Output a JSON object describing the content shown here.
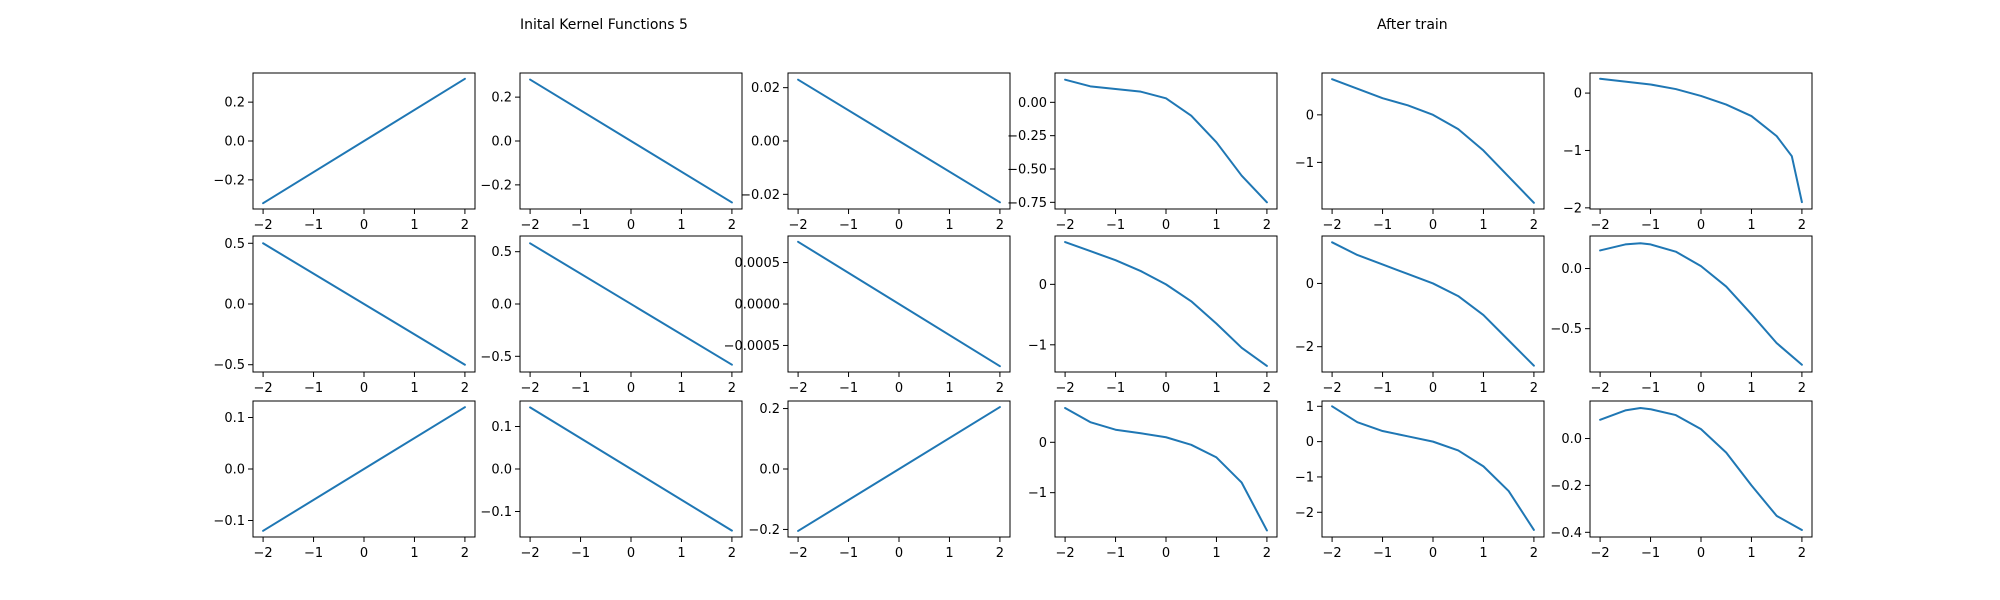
{
  "titles": {
    "left": "Inital Kernel Functions 5",
    "right": "After train"
  },
  "style": {
    "line_color": "#1f77b4",
    "axis_color": "#000000",
    "background": "#ffffff"
  },
  "chart_data": [
    {
      "type": "line",
      "row": 0,
      "col": 0,
      "x": [
        -2,
        2
      ],
      "y": [
        -0.32,
        0.32
      ],
      "ylim": [
        -0.35,
        0.35
      ],
      "xticks": [
        -2,
        -1,
        0,
        1,
        2
      ],
      "yticks": [
        -0.2,
        0.0,
        0.2
      ],
      "ytick_labels": [
        "−0.2",
        "0.0",
        "0.2"
      ]
    },
    {
      "type": "line",
      "row": 0,
      "col": 1,
      "x": [
        -2,
        2
      ],
      "y": [
        0.28,
        -0.28
      ],
      "ylim": [
        -0.31,
        0.31
      ],
      "xticks": [
        -2,
        -1,
        0,
        1,
        2
      ],
      "yticks": [
        -0.2,
        0.0,
        0.2
      ],
      "ytick_labels": [
        "−0.2",
        "0.0",
        "0.2"
      ]
    },
    {
      "type": "line",
      "row": 0,
      "col": 2,
      "x": [
        -2,
        2
      ],
      "y": [
        0.023,
        -0.023
      ],
      "ylim": [
        -0.0255,
        0.0255
      ],
      "xticks": [
        -2,
        -1,
        0,
        1,
        2
      ],
      "yticks": [
        -0.02,
        0.0,
        0.02
      ],
      "ytick_labels": [
        "−0.02",
        "0.00",
        "0.02"
      ]
    },
    {
      "type": "line",
      "row": 0,
      "col": 3,
      "x": [
        -2,
        -1.5,
        -1,
        -0.5,
        0,
        0.5,
        1,
        1.5,
        2
      ],
      "y": [
        0.17,
        0.12,
        0.1,
        0.08,
        0.03,
        -0.1,
        -0.3,
        -0.55,
        -0.75
      ],
      "ylim": [
        -0.8,
        0.22
      ],
      "xticks": [
        -2,
        -1,
        0,
        1,
        2
      ],
      "yticks": [
        -0.75,
        -0.5,
        -0.25,
        0.0
      ],
      "ytick_labels": [
        "−0.75",
        "−0.50",
        "−0.25",
        "0.00"
      ]
    },
    {
      "type": "line",
      "row": 0,
      "col": 4,
      "x": [
        -2,
        -1.5,
        -1,
        -0.5,
        0,
        0.5,
        1,
        1.5,
        2
      ],
      "y": [
        0.75,
        0.55,
        0.35,
        0.2,
        0.0,
        -0.3,
        -0.75,
        -1.3,
        -1.85
      ],
      "ylim": [
        -1.98,
        0.88
      ],
      "xticks": [
        -2,
        -1,
        0,
        1,
        2
      ],
      "yticks": [
        -1,
        0
      ],
      "ytick_labels": [
        "−1",
        "0"
      ]
    },
    {
      "type": "line",
      "row": 0,
      "col": 5,
      "x": [
        -2,
        -1.5,
        -1,
        -0.5,
        0,
        0.5,
        1,
        1.5,
        1.8,
        2
      ],
      "y": [
        0.25,
        0.2,
        0.15,
        0.07,
        -0.05,
        -0.2,
        -0.4,
        -0.75,
        -1.1,
        -1.9
      ],
      "ylim": [
        -2.02,
        0.35
      ],
      "xticks": [
        -2,
        -1,
        0,
        1,
        2
      ],
      "yticks": [
        -2,
        -1,
        0
      ],
      "ytick_labels": [
        "−2",
        "−1",
        "0"
      ]
    },
    {
      "type": "line",
      "row": 1,
      "col": 0,
      "x": [
        -2,
        2
      ],
      "y": [
        0.5,
        -0.5
      ],
      "ylim": [
        -0.56,
        0.56
      ],
      "xticks": [
        -2,
        -1,
        0,
        1,
        2
      ],
      "yticks": [
        -0.5,
        0.0,
        0.5
      ],
      "ytick_labels": [
        "−0.5",
        "0.0",
        "0.5"
      ]
    },
    {
      "type": "line",
      "row": 1,
      "col": 1,
      "x": [
        -2,
        2
      ],
      "y": [
        0.58,
        -0.58
      ],
      "ylim": [
        -0.65,
        0.65
      ],
      "xticks": [
        -2,
        -1,
        0,
        1,
        2
      ],
      "yticks": [
        -0.5,
        0.0,
        0.5
      ],
      "ytick_labels": [
        "−0.5",
        "0.0",
        "0.5"
      ]
    },
    {
      "type": "line",
      "row": 1,
      "col": 2,
      "x": [
        -2,
        2
      ],
      "y": [
        0.00075,
        -0.00075
      ],
      "ylim": [
        -0.00082,
        0.00082
      ],
      "xticks": [
        -2,
        -1,
        0,
        1,
        2
      ],
      "yticks": [
        -0.0005,
        0.0,
        0.0005
      ],
      "ytick_labels": [
        "−0.0005",
        "0.0000",
        "0.0005"
      ]
    },
    {
      "type": "line",
      "row": 1,
      "col": 3,
      "x": [
        -2,
        -1.5,
        -1,
        -0.5,
        0,
        0.5,
        1,
        1.5,
        2
      ],
      "y": [
        0.7,
        0.55,
        0.4,
        0.22,
        0.0,
        -0.28,
        -0.65,
        -1.05,
        -1.35
      ],
      "ylim": [
        -1.45,
        0.8
      ],
      "xticks": [
        -2,
        -1,
        0,
        1,
        2
      ],
      "yticks": [
        -1,
        0
      ],
      "ytick_labels": [
        "−1",
        "0"
      ]
    },
    {
      "type": "line",
      "row": 1,
      "col": 4,
      "x": [
        -2,
        -1.5,
        -1,
        -0.5,
        0,
        0.5,
        1,
        1.5,
        2
      ],
      "y": [
        1.3,
        0.9,
        0.6,
        0.3,
        0.0,
        -0.4,
        -1.0,
        -1.8,
        -2.6
      ],
      "ylim": [
        -2.8,
        1.5
      ],
      "xticks": [
        -2,
        -1,
        0,
        1,
        2
      ],
      "yticks": [
        -2,
        0
      ],
      "ytick_labels": [
        "−2",
        "0"
      ]
    },
    {
      "type": "line",
      "row": 1,
      "col": 5,
      "x": [
        -2,
        -1.5,
        -1.2,
        -1,
        -0.5,
        0,
        0.5,
        1,
        1.5,
        2
      ],
      "y": [
        0.15,
        0.2,
        0.21,
        0.2,
        0.14,
        0.02,
        -0.15,
        -0.38,
        -0.62,
        -0.8
      ],
      "ylim": [
        -0.86,
        0.27
      ],
      "xticks": [
        -2,
        -1,
        0,
        1,
        2
      ],
      "yticks": [
        -0.5,
        0.0
      ],
      "ytick_labels": [
        "−0.5",
        "0.0"
      ]
    },
    {
      "type": "line",
      "row": 2,
      "col": 0,
      "x": [
        -2,
        2
      ],
      "y": [
        -0.12,
        0.12
      ],
      "ylim": [
        -0.132,
        0.132
      ],
      "xticks": [
        -2,
        -1,
        0,
        1,
        2
      ],
      "yticks": [
        -0.1,
        0.0,
        0.1
      ],
      "ytick_labels": [
        "−0.1",
        "0.0",
        "0.1"
      ]
    },
    {
      "type": "line",
      "row": 2,
      "col": 1,
      "x": [
        -2,
        2
      ],
      "y": [
        0.145,
        -0.145
      ],
      "ylim": [
        -0.16,
        0.16
      ],
      "xticks": [
        -2,
        -1,
        0,
        1,
        2
      ],
      "yticks": [
        -0.1,
        0.0,
        0.1
      ],
      "ytick_labels": [
        "−0.1",
        "0.0",
        "0.1"
      ]
    },
    {
      "type": "line",
      "row": 2,
      "col": 2,
      "x": [
        -2,
        2
      ],
      "y": [
        -0.205,
        0.205
      ],
      "ylim": [
        -0.225,
        0.225
      ],
      "xticks": [
        -2,
        -1,
        0,
        1,
        2
      ],
      "yticks": [
        -0.2,
        0.0,
        0.2
      ],
      "ytick_labels": [
        "−0.2",
        "0.0",
        "0.2"
      ]
    },
    {
      "type": "line",
      "row": 2,
      "col": 3,
      "x": [
        -2,
        -1.5,
        -1,
        -0.5,
        0,
        0.5,
        1,
        1.5,
        2
      ],
      "y": [
        0.68,
        0.4,
        0.25,
        0.18,
        0.1,
        -0.05,
        -0.3,
        -0.8,
        -1.75
      ],
      "ylim": [
        -1.88,
        0.82
      ],
      "xticks": [
        -2,
        -1,
        0,
        1,
        2
      ],
      "yticks": [
        -1,
        0
      ],
      "ytick_labels": [
        "−1",
        "0"
      ]
    },
    {
      "type": "line",
      "row": 2,
      "col": 4,
      "x": [
        -2,
        -1.5,
        -1,
        -0.5,
        0,
        0.5,
        1,
        1.5,
        2
      ],
      "y": [
        1.0,
        0.55,
        0.3,
        0.15,
        0.0,
        -0.25,
        -0.7,
        -1.4,
        -2.5
      ],
      "ylim": [
        -2.7,
        1.15
      ],
      "xticks": [
        -2,
        -1,
        0,
        1,
        2
      ],
      "yticks": [
        -2,
        -1,
        0,
        1
      ],
      "ytick_labels": [
        "−2",
        "−1",
        "0",
        "1"
      ]
    },
    {
      "type": "line",
      "row": 2,
      "col": 5,
      "x": [
        -2,
        -1.5,
        -1.2,
        -1,
        -0.5,
        0,
        0.5,
        1,
        1.5,
        2
      ],
      "y": [
        0.08,
        0.12,
        0.13,
        0.125,
        0.1,
        0.04,
        -0.06,
        -0.2,
        -0.33,
        -0.39
      ],
      "ylim": [
        -0.42,
        0.16
      ],
      "xticks": [
        -2,
        -1,
        0,
        1,
        2
      ],
      "yticks": [
        -0.4,
        -0.2,
        0.0
      ],
      "ytick_labels": [
        "−0.4",
        "−0.2",
        "0.0"
      ]
    }
  ]
}
